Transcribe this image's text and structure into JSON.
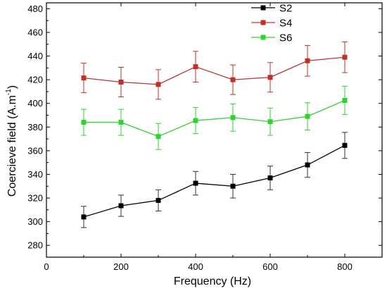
{
  "chart_data": {
    "type": "line",
    "title": "",
    "xlabel": "Frequency (Hz)",
    "ylabel_main": "Coercieve field (A.m",
    "ylabel_sup": "-1",
    "ylabel_close": ")",
    "xlim": [
      0,
      900
    ],
    "ylim": [
      270,
      485
    ],
    "x_ticks": [
      0,
      200,
      400,
      600,
      800
    ],
    "y_ticks": [
      280,
      300,
      320,
      340,
      360,
      380,
      400,
      420,
      440,
      460,
      480
    ],
    "x": [
      100,
      200,
      300,
      400,
      500,
      600,
      700,
      800
    ],
    "legend_position": "top-right",
    "series": [
      {
        "name": "S2",
        "color": "#000000",
        "errcolor": "#333333",
        "values": [
          304,
          313.5,
          318,
          332.5,
          330,
          337,
          348,
          364.5
        ],
        "errors": [
          9,
          9,
          9,
          10,
          10,
          10,
          10.5,
          11
        ]
      },
      {
        "name": "S4",
        "color": "#c0302b",
        "errcolor": "#c0302b",
        "values": [
          421.5,
          418,
          416,
          431,
          420,
          422,
          436,
          439
        ],
        "errors": [
          12.5,
          12.5,
          12.5,
          13,
          12.5,
          12.5,
          13,
          13
        ]
      },
      {
        "name": "S6",
        "color": "#2fd32f",
        "errcolor": "#2fd32f",
        "values": [
          384,
          384,
          372,
          385.5,
          388,
          384.5,
          389,
          402.5
        ],
        "errors": [
          11,
          11,
          11,
          11,
          11.5,
          11.5,
          11.5,
          12
        ]
      }
    ]
  }
}
